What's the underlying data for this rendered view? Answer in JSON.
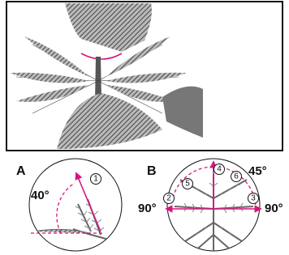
{
  "panel_a": {
    "label": "A",
    "angle": "40°",
    "step": "1"
  },
  "panel_b": {
    "label": "B",
    "angle_top": "45°",
    "angle_left": "90°",
    "angle_right": "90°",
    "steps": [
      "2",
      "3",
      "4",
      "5",
      "6"
    ]
  }
}
